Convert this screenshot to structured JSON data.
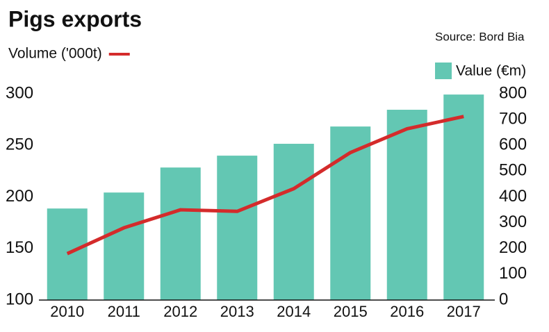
{
  "chart_data": {
    "type": "bar-line",
    "title": "Pigs exports",
    "source": "Source: Bord Bia",
    "categories": [
      "2010",
      "2011",
      "2012",
      "2013",
      "2014",
      "2015",
      "2016",
      "2017"
    ],
    "series": [
      {
        "name": "Volume ('000t)",
        "type": "line",
        "axis": "y",
        "color": "#d42b2b",
        "values": [
          145,
          170,
          187.5,
          186,
          208,
          243,
          266,
          278
        ]
      },
      {
        "name": "Value (€m)",
        "type": "bar",
        "axis": "y2",
        "color": "#63c7b3",
        "values": [
          355,
          417,
          514,
          560,
          606,
          673,
          738,
          797
        ]
      }
    ],
    "ylim": [
      100,
      300
    ],
    "yticks": [
      100,
      150,
      200,
      250,
      300
    ],
    "y2lim": [
      0,
      800
    ],
    "y2ticks": [
      0,
      100,
      200,
      300,
      400,
      500,
      600,
      700,
      800
    ],
    "grid": false
  }
}
